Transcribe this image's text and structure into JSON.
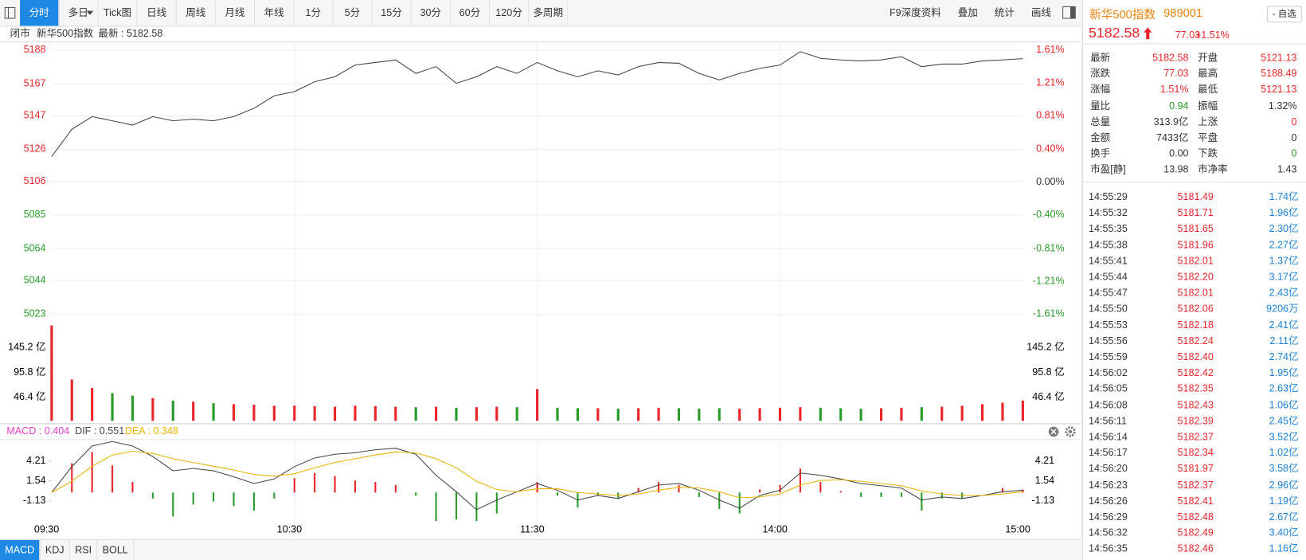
{
  "toolbar": {
    "tabs": [
      "分时",
      "多日",
      "Tick图",
      "日线",
      "周线",
      "月线",
      "年线",
      "1分",
      "5分",
      "15分",
      "30分",
      "60分",
      "120分",
      "多周期"
    ],
    "tools": [
      "F9深度资料",
      "叠加",
      "统计",
      "画线"
    ]
  },
  "info_bar": {
    "status": "闭市",
    "name": "新华500指数",
    "latest": "最新 : 5182.58"
  },
  "chart_data": [
    {
      "type": "line",
      "color": "#444444",
      "up_color": "#e8262a",
      "down_color": "#2a9a2a",
      "values": [
        5121.4,
        5138.5,
        5146.4,
        5143.8,
        5141.1,
        5146.4,
        5143.8,
        5144.8,
        5143.8,
        5146.4,
        5151.6,
        5159.4,
        5162,
        5168.2,
        5171.3,
        5178.6,
        5180.2,
        5181.8,
        5173.4,
        5177.6,
        5167.2,
        5171.3,
        5177.6,
        5173.4,
        5180.2,
        5175,
        5171.3,
        5175,
        5172.4,
        5177.6,
        5180.2,
        5179.7,
        5173.4,
        5169.3,
        5173.4,
        5176.5,
        5178.6,
        5187,
        5182.8,
        5181.8,
        5181.2,
        5181.8,
        5183.8,
        5177.6,
        5179.2,
        5179.2,
        5181.2,
        5181.8,
        5182.6
      ],
      "ylim": [
        5023,
        5188
      ],
      "yticks": [
        5188,
        5167,
        5147,
        5126,
        5106,
        5085,
        5064,
        5044,
        5023
      ],
      "y2lim": [
        -1.61,
        1.61
      ],
      "y2ticks": [
        {
          "value": 1.61,
          "label": "1.61%"
        },
        {
          "value": 1.21,
          "label": "1.21%"
        },
        {
          "value": 0.81,
          "label": "0.81%"
        },
        {
          "value": 0.4,
          "label": "0.40%"
        },
        {
          "value": 0,
          "label": "0.00%"
        },
        {
          "value": -0.4,
          "label": "-0.40%"
        },
        {
          "value": -0.81,
          "label": "-0.81%"
        },
        {
          "value": -1.21,
          "label": "-1.21%"
        },
        {
          "value": -1.61,
          "label": "-1.61%"
        }
      ],
      "grid": true
    },
    {
      "type": "bar",
      "up_color": "#e8262a",
      "down_color": "#2a9a2a",
      "values": [
        189,
        82,
        65,
        55,
        50,
        45,
        40,
        38,
        35,
        33,
        32,
        30,
        30,
        29,
        28,
        30,
        29,
        28,
        27,
        28,
        26,
        27,
        28,
        27,
        63,
        26,
        25,
        25,
        24,
        25,
        26,
        25,
        24,
        25,
        24,
        25,
        26,
        27,
        26,
        25,
        24,
        25,
        26,
        27,
        28,
        30,
        33,
        36,
        40
      ],
      "ylim": [
        0,
        190
      ],
      "yticks": [
        {
          "value": 145.2,
          "label": "145.2 亿"
        },
        {
          "value": 95.8,
          "label": "95.8 亿"
        },
        {
          "value": 46.4,
          "label": "46.4 亿"
        }
      ]
    },
    {
      "type": "macd",
      "up_color": "#e8262a",
      "down_color": "#2a9a2a",
      "categories": [
        "09:30",
        null,
        null,
        null,
        null,
        null,
        null,
        null,
        null,
        null,
        null,
        null,
        "10:30",
        null,
        null,
        null,
        null,
        null,
        null,
        null,
        null,
        null,
        null,
        null,
        "11:30",
        null,
        null,
        null,
        null,
        null,
        null,
        null,
        null,
        null,
        null,
        null,
        "14:00",
        null,
        null,
        null,
        null,
        null,
        null,
        null,
        null,
        null,
        null,
        null,
        "15:00"
      ],
      "series": [
        {
          "name": "MACD : 0.404",
          "color": "#e040c8",
          "values": [
            0,
            3.9,
            5.4,
            3.6,
            1.4,
            -0.8,
            -3.2,
            -1.6,
            -1.2,
            -1.8,
            -2.4,
            -0.8,
            1.9,
            2.6,
            2.2,
            1.6,
            1.4,
            1,
            -0.4,
            -3.8,
            -3.6,
            -3.8,
            -2.8,
            0,
            1.4,
            -0.4,
            -2,
            -0.4,
            -0.8,
            0.6,
            1.4,
            1,
            -0.6,
            -2.2,
            -2.8,
            0.4,
            1,
            3.2,
            1.4,
            0.2,
            -0.6,
            -0.6,
            -0.6,
            -2.4,
            -0.8,
            -0.8,
            0,
            0.6,
            0.4
          ]
        },
        {
          "name": "DIF : 0.551",
          "color": "#444444",
          "values": [
            0,
            3.45,
            6.2,
            6.8,
            6.2,
            4.8,
            2.9,
            3.2,
            2.9,
            2.1,
            1.2,
            1.8,
            3.45,
            4.6,
            5.1,
            5.3,
            5.7,
            5.9,
            5.1,
            2.3,
            0.1,
            -2.3,
            -1,
            0.1,
            1.2,
            0.3,
            -1,
            -0.4,
            -0.8,
            0.1,
            1,
            1.2,
            0.3,
            -1,
            -2.1,
            -0.4,
            0.3,
            2.6,
            2.3,
            1.8,
            1.2,
            0.9,
            0.6,
            -1,
            -0.6,
            -0.8,
            -0.4,
            0.1,
            0.3
          ]
        },
        {
          "name": "DEA : 0.348",
          "color": "#e8b400",
          "values": [
            0,
            1.5,
            3.5,
            5,
            5.5,
            5.2,
            4.5,
            4,
            3.5,
            3,
            2.4,
            2.2,
            2.5,
            3.3,
            4,
            4.5,
            5,
            5.4,
            5.3,
            4.5,
            3.3,
            1.5,
            0.4,
            0.1,
            0.5,
            0.5,
            0,
            -0.2,
            -0.4,
            -0.2,
            0.3,
            0.7,
            0.6,
            0.1,
            -0.7,
            -0.6,
            -0.2,
            1,
            1.6,
            1.7,
            1.5,
            1.2,
            0.9,
            0.2,
            -0.2,
            -0.4,
            -0.4,
            -0.2,
            0.1
          ]
        }
      ],
      "ylim": [
        -6,
        7
      ],
      "yticks": [
        4.21,
        1.54,
        -1.13
      ]
    }
  ],
  "indicator_tabs": [
    "MACD",
    "KDJ",
    "RSI",
    "BOLL"
  ],
  "quote": {
    "name": "新华500指数",
    "code": "989001",
    "favorite": "- 自选",
    "price": "5182.58",
    "change": "77.03",
    "change_pct": "+1.51%",
    "stats": [
      [
        {
          "label": "最新",
          "value": "5182.58",
          "color": "#e8262a"
        },
        {
          "label": "开盘",
          "value": "5121.13",
          "color": "#e8262a"
        }
      ],
      [
        {
          "label": "涨跌",
          "value": "77.03",
          "color": "#e8262a"
        },
        {
          "label": "最高",
          "value": "5188.49",
          "color": "#e8262a"
        }
      ],
      [
        {
          "label": "涨幅",
          "value": "1.51%",
          "color": "#e8262a"
        },
        {
          "label": "最低",
          "value": "5121.13",
          "color": "#e8262a"
        }
      ],
      [
        {
          "label": "量比",
          "value": "0.94",
          "color": "#2a9a2a"
        },
        {
          "label": "振幅",
          "value": "1.32%",
          "color": "#333333"
        }
      ],
      [
        {
          "label": "总量",
          "value": "313.9亿",
          "color": "#333333"
        },
        {
          "label": "上涨",
          "value": "0",
          "color": "#e8262a"
        }
      ],
      [
        {
          "label": "金额",
          "value": "7433亿",
          "color": "#333333"
        },
        {
          "label": "平盘",
          "value": "0",
          "color": "#333333"
        }
      ],
      [
        {
          "label": "换手",
          "value": "0.00",
          "color": "#333333"
        },
        {
          "label": "下跌",
          "value": "0",
          "color": "#2a9a2a"
        }
      ],
      [
        {
          "label": "市盈[静]",
          "value": "13.98",
          "color": "#333333"
        },
        {
          "label": "市净率",
          "value": "1.43",
          "color": "#333333"
        }
      ]
    ],
    "ticks": [
      [
        "14:55:29",
        "5181.49",
        "1.74亿"
      ],
      [
        "14:55:32",
        "5181.71",
        "1.96亿"
      ],
      [
        "14:55:35",
        "5181.65",
        "2.30亿"
      ],
      [
        "14:55:38",
        "5181.96",
        "2.27亿"
      ],
      [
        "14:55:41",
        "5182.01",
        "1.37亿"
      ],
      [
        "14:55:44",
        "5182.20",
        "3.17亿"
      ],
      [
        "14:55:47",
        "5182.01",
        "2.43亿"
      ],
      [
        "14:55:50",
        "5182.06",
        "9206万"
      ],
      [
        "14:55:53",
        "5182.18",
        "2.41亿"
      ],
      [
        "14:55:56",
        "5182.24",
        "2.11亿"
      ],
      [
        "14:55:59",
        "5182.40",
        "2.74亿"
      ],
      [
        "14:56:02",
        "5182.42",
        "1.95亿"
      ],
      [
        "14:56:05",
        "5182.35",
        "2.63亿"
      ],
      [
        "14:56:08",
        "5182.43",
        "1.06亿"
      ],
      [
        "14:56:11",
        "5182.39",
        "2.45亿"
      ],
      [
        "14:56:14",
        "5182.37",
        "3.52亿"
      ],
      [
        "14:56:17",
        "5182.34",
        "1.02亿"
      ],
      [
        "14:56:20",
        "5181.97",
        "3.58亿"
      ],
      [
        "14:56:23",
        "5182.37",
        "2.96亿"
      ],
      [
        "14:56:26",
        "5182.41",
        "1.19亿"
      ],
      [
        "14:56:29",
        "5182.48",
        "2.67亿"
      ],
      [
        "14:56:32",
        "5182.49",
        "3.40亿"
      ],
      [
        "14:56:35",
        "5182.46",
        "1.16亿"
      ]
    ],
    "tick_price_color": "#e8262a",
    "tick_volume_color": "#1a7fd6"
  }
}
